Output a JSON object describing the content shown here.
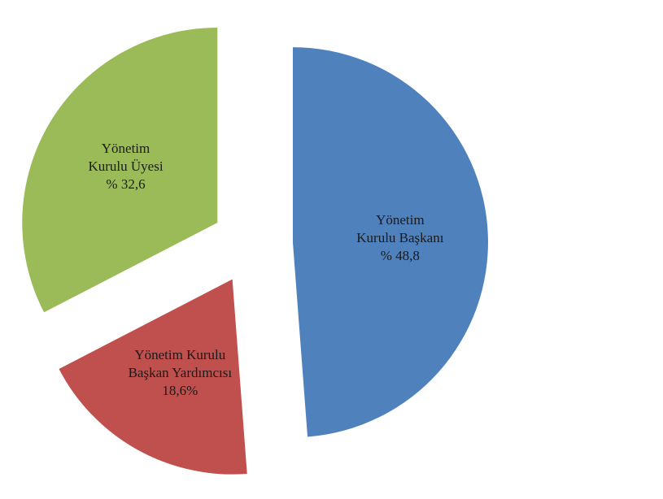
{
  "chart_data": {
    "type": "pie",
    "categories": [
      "Yönetim Kurulu Başkanı",
      "Yönetim Kurulu Başkan Yardımcısı",
      "Yönetim Kurulu Üyesi"
    ],
    "values": [
      48.8,
      18.6,
      32.6
    ],
    "value_labels": [
      "% 48,8",
      "18,6%",
      "% 32,6"
    ],
    "colors": [
      "#4f81bd",
      "#c0504d",
      "#9bbb59"
    ]
  }
}
